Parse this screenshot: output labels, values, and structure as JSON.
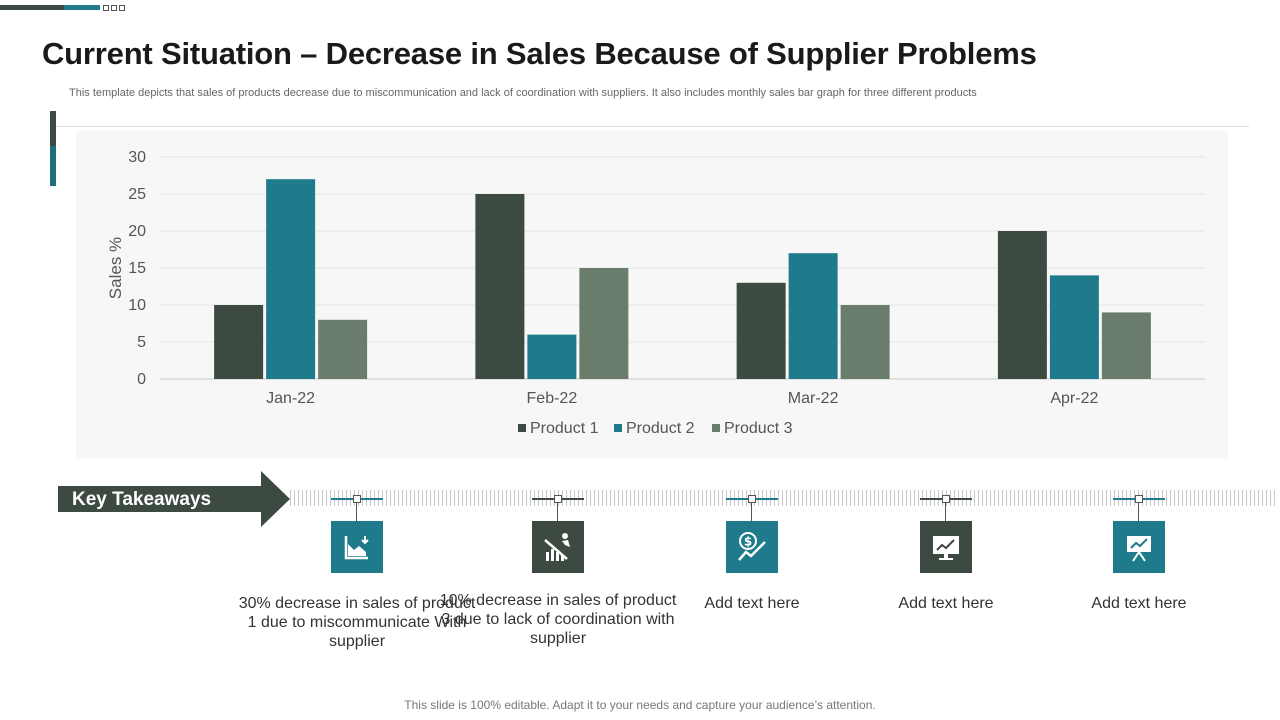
{
  "header": {
    "title": "Current Situation – Decrease in Sales Because of Supplier Problems",
    "subtitle": "This template depicts that sales of products decrease due to miscommunication and lack of coordination with suppliers. It also includes monthly sales bar graph for three different products"
  },
  "chart_data": {
    "type": "bar",
    "title": "",
    "xlabel": "",
    "ylabel": "Sales %",
    "ylim": [
      0,
      30
    ],
    "yticks": [
      0,
      5,
      10,
      15,
      20,
      25,
      30
    ],
    "grid": true,
    "legend_position": "bottom",
    "categories": [
      "Jan-22",
      "Feb-22",
      "Mar-22",
      "Apr-22"
    ],
    "series": [
      {
        "name": "Product 1",
        "color": "#3d4a41",
        "values": [
          10,
          25,
          13,
          20
        ]
      },
      {
        "name": "Product 2",
        "color": "#1f7a8c",
        "values": [
          27,
          6,
          17,
          14
        ]
      },
      {
        "name": "Product 3",
        "color": "#6a7d6d",
        "values": [
          8,
          15,
          10,
          9
        ]
      }
    ]
  },
  "takeaways": {
    "label": "Key Takeaways",
    "items": [
      {
        "icon": "chart-decrease-icon",
        "color": "#1f7a8c",
        "text": "30% decrease in sales of product 1 due to miscommunicate With supplier"
      },
      {
        "icon": "falling-sales-icon",
        "color": "#3d4a41",
        "text": "10% decrease in sales of product 3 due to lack of coordination with supplier"
      },
      {
        "icon": "dollar-trend-icon",
        "color": "#1f7a8c",
        "text": "Add text here"
      },
      {
        "icon": "monitor-chart-icon",
        "color": "#3d4a41",
        "text": "Add text here"
      },
      {
        "icon": "presentation-board-icon",
        "color": "#1f7a8c",
        "text": "Add text here"
      }
    ]
  },
  "footer": {
    "text": "This slide is 100% editable. Adapt it to your needs and capture your audience’s attention."
  },
  "colors": {
    "dark": "#3d4a41",
    "teal": "#1f7a8c",
    "sage": "#6a7d6d"
  }
}
